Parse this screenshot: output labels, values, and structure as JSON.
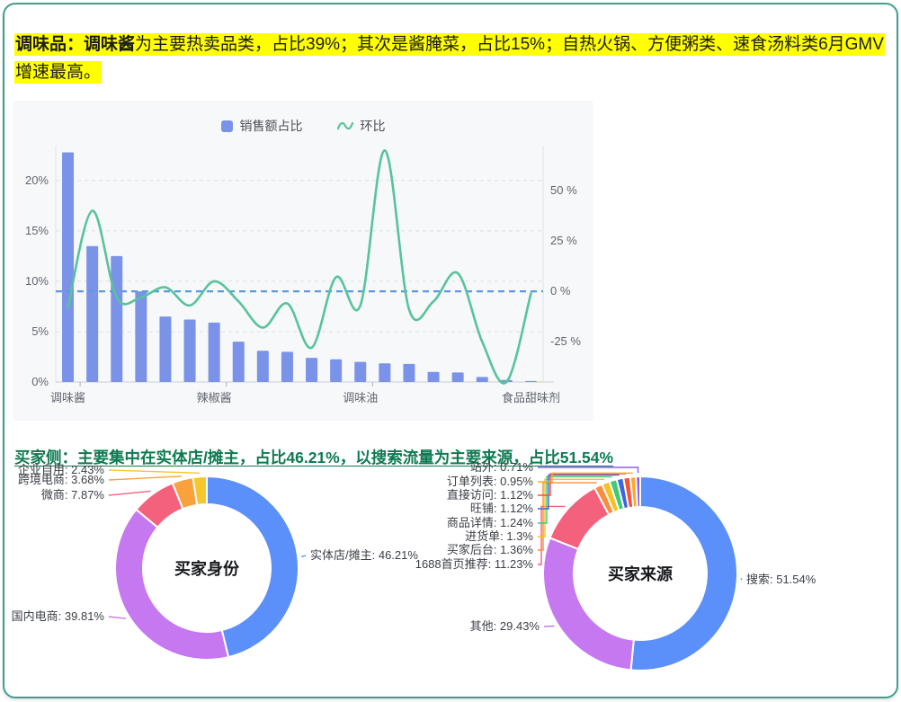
{
  "page": {
    "border_color": "#3f9f8d",
    "background": "#ffffff"
  },
  "headline": {
    "highlight_color": "#ffff00",
    "bold": "调味品：调味酱",
    "rest": "为主要热卖品类，占比39%；其次是酱腌菜，占比15%；自热火锅、方便粥类、速食汤料类6月GMV增速最高。"
  },
  "subheadline": {
    "color": "#0e7a52",
    "text": "买家侧：主要集中在实体店/摊主，占比46.21%，以搜索流量为主要来源，占比51.54%"
  },
  "chart_data": [
    {
      "type": "bar",
      "title": "",
      "legend": [
        "销售额占比",
        "环比"
      ],
      "legend_position": "top",
      "grid": true,
      "categories": [
        "调味酱",
        "",
        "",
        "",
        "",
        "",
        "辣椒酱",
        "",
        "",
        "",
        "",
        "",
        "调味油",
        "",
        "",
        "",
        "",
        "",
        "",
        "食品甜味剂"
      ],
      "series": [
        {
          "name": "销售额占比",
          "type": "bar",
          "axis": "left",
          "unit": "%",
          "color": "#7a93e8",
          "values": [
            22.8,
            13.5,
            12.5,
            9,
            6.5,
            6.2,
            5.9,
            4,
            3.1,
            3,
            2.4,
            2.25,
            2,
            1.85,
            1.8,
            1,
            0.95,
            0.5,
            0.2,
            0.1
          ]
        },
        {
          "name": "环比",
          "type": "line",
          "axis": "right",
          "unit": "%",
          "color": "#57c39b",
          "values": [
            -8,
            40,
            -3,
            -3,
            2,
            -7,
            5,
            -5,
            -18,
            -6,
            -28,
            7,
            -7,
            70,
            -9,
            -5,
            9,
            -25,
            -45,
            -1
          ]
        }
      ],
      "left_axis": {
        "tick_labels": [
          "0%",
          "5%",
          "10%",
          "15%",
          "20%"
        ],
        "tick_values": [
          0,
          5,
          10,
          15,
          20
        ],
        "max": 23.2
      },
      "right_axis": {
        "tick_labels": [
          "-25 %",
          "0 %",
          "25 %",
          "50 %"
        ],
        "tick_values": [
          -25,
          0,
          25,
          50
        ]
      },
      "zero_line": {
        "color": "#5a9ae0",
        "style": "dashed"
      }
    },
    {
      "type": "pie",
      "title": "买家身份",
      "slices": [
        {
          "label": "实体店/摊主",
          "value": 46.21,
          "color": "#5b8ff9"
        },
        {
          "label": "国内电商",
          "value": 39.81,
          "color": "#c678f0"
        },
        {
          "label": "微商",
          "value": 7.87,
          "color": "#f4617d"
        },
        {
          "label": "跨境电商",
          "value": 3.68,
          "color": "#f9a13d"
        },
        {
          "label": "企业自用",
          "value": 2.43,
          "color": "#f6c62d"
        }
      ]
    },
    {
      "type": "pie",
      "title": "买家来源",
      "slices": [
        {
          "label": "搜索",
          "value": 51.54,
          "color": "#5b8ff9"
        },
        {
          "label": "其他",
          "value": 29.43,
          "color": "#c678f0"
        },
        {
          "label": "1688首页推荐",
          "value": 11.23,
          "color": "#f4617d"
        },
        {
          "label": "买家后台",
          "value": 1.36,
          "color": "#fa8c3e"
        },
        {
          "label": "进货单",
          "value": 1.3,
          "color": "#f6c123"
        },
        {
          "label": "商品详情",
          "value": 1.24,
          "color": "#3fcb76"
        },
        {
          "label": "旺铺",
          "value": 1.12,
          "color": "#3a66e0"
        },
        {
          "label": "直接访问",
          "value": 1.12,
          "color": "#f4503a"
        },
        {
          "label": "订单列表",
          "value": 0.95,
          "color": "#fcaa2b"
        },
        {
          "label": "站外",
          "value": 0.71,
          "color": "#8b5cf6"
        }
      ]
    }
  ]
}
